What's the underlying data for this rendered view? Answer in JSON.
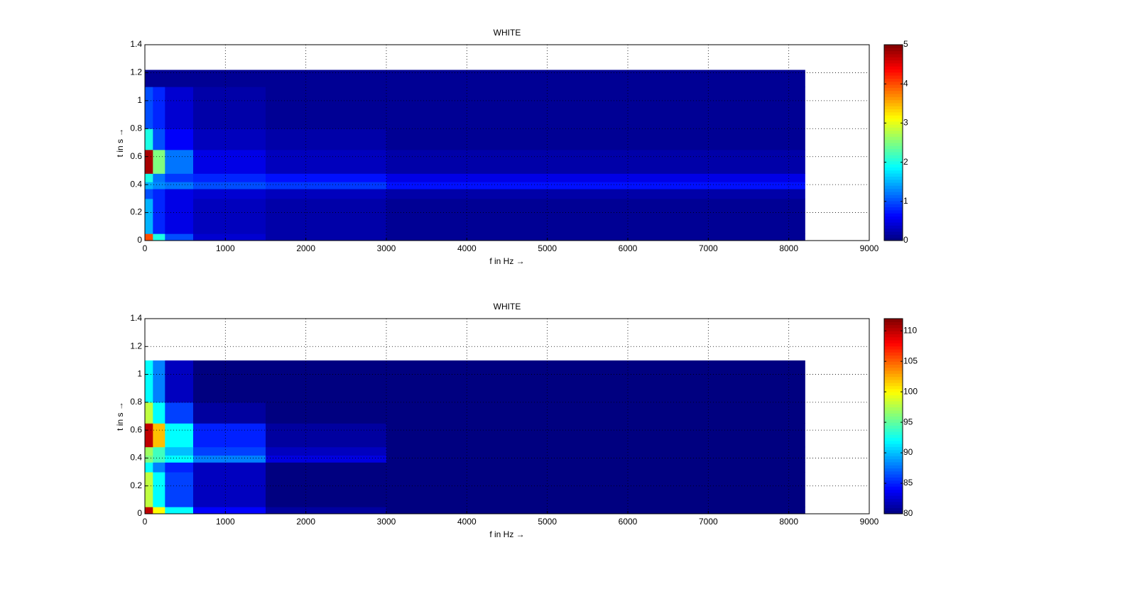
{
  "chart_data": [
    {
      "type": "heatmap",
      "title": "WHITE",
      "xlabel": "f in Hz →",
      "ylabel": "t in s →",
      "xlim": [
        0,
        9000
      ],
      "ylim": [
        0,
        1.4
      ],
      "xticks": [
        0,
        1000,
        2000,
        3000,
        4000,
        5000,
        6000,
        7000,
        8000,
        9000
      ],
      "yticks": [
        0,
        0.2,
        0.4,
        0.6,
        0.8,
        1,
        1.2,
        1.4
      ],
      "grid": true,
      "colormap": "jet",
      "x_edges": [
        0,
        100,
        250,
        600,
        1500,
        3000,
        8200
      ],
      "y_edges": [
        0,
        0.05,
        0.3,
        0.37,
        0.42,
        0.48,
        0.65,
        0.8,
        1.1,
        1.22
      ],
      "values": [
        [
          4,
          2,
          1,
          0.4,
          0.2,
          0.1
        ],
        [
          1.5,
          0.8,
          0.5,
          0.3,
          0.2,
          0.1
        ],
        [
          1,
          0.8,
          0.5,
          0.4,
          0.3,
          0.2
        ],
        [
          1.5,
          1.3,
          1.2,
          1,
          0.9,
          0.7
        ],
        [
          2,
          1.2,
          0.9,
          0.8,
          0.7,
          0.5
        ],
        [
          4.8,
          2.5,
          1.2,
          0.5,
          0.3,
          0.2
        ],
        [
          2,
          1,
          0.6,
          0.3,
          0.2,
          0.1
        ],
        [
          1,
          0.8,
          0.4,
          0.2,
          0.1,
          0.1
        ],
        [
          0.1,
          0.1,
          0.1,
          0.1,
          0.1,
          0.1
        ]
      ],
      "clim": [
        0,
        5
      ],
      "cticks": [
        0,
        1,
        2,
        3,
        4,
        5
      ]
    },
    {
      "type": "heatmap",
      "title": "WHITE",
      "xlabel": "f in Hz →",
      "ylabel": "t in s →",
      "xlim": [
        0,
        9000
      ],
      "ylim": [
        0,
        1.4
      ],
      "xticks": [
        0,
        1000,
        2000,
        3000,
        4000,
        5000,
        6000,
        7000,
        8000,
        9000
      ],
      "yticks": [
        0,
        0.2,
        0.4,
        0.6,
        0.8,
        1,
        1.2,
        1.4
      ],
      "grid": true,
      "colormap": "jet",
      "x_edges": [
        0,
        100,
        250,
        600,
        1500,
        3000,
        8200
      ],
      "y_edges": [
        0,
        0.05,
        0.3,
        0.37,
        0.42,
        0.48,
        0.65,
        0.8,
        1.1
      ],
      "values": [
        [
          110,
          100,
          92,
          84,
          81,
          80
        ],
        [
          98,
          92,
          86,
          82,
          80,
          80
        ],
        [
          92,
          88,
          85,
          82,
          80,
          80
        ],
        [
          96,
          94,
          92,
          88,
          83,
          80
        ],
        [
          97,
          94,
          90,
          86,
          82,
          80
        ],
        [
          110,
          102,
          92,
          85,
          81,
          80
        ],
        [
          98,
          92,
          86,
          81,
          80,
          80
        ],
        [
          92,
          88,
          82,
          80,
          80,
          80
        ]
      ],
      "clim": [
        80,
        112
      ],
      "cticks": [
        80,
        85,
        90,
        95,
        100,
        105,
        110
      ]
    }
  ]
}
